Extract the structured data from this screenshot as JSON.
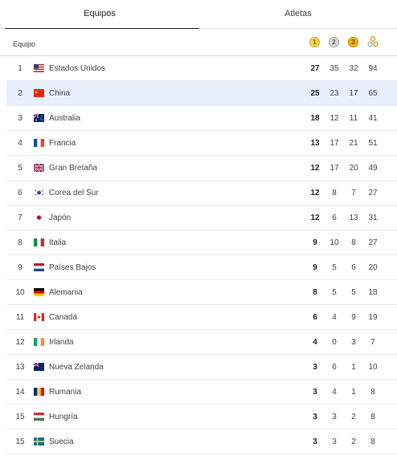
{
  "tabs": [
    {
      "label": "Equipos",
      "active": true
    },
    {
      "label": "Atletas",
      "active": false
    }
  ],
  "header": {
    "team_label": "Equipo",
    "gold": "1",
    "silver": "2",
    "bronze": "3"
  },
  "colors": {
    "highlight_row": "#e8f0fe",
    "gold": "#f7d44c",
    "silver": "#d9d9d9",
    "bronze": "#f4b400"
  },
  "rows": [
    {
      "rank": "1",
      "team": "Estados Unidos",
      "flag": "usa",
      "gold": "27",
      "silver": "35",
      "bronze": "32",
      "total": "94"
    },
    {
      "rank": "2",
      "team": "China",
      "flag": "china",
      "gold": "25",
      "silver": "23",
      "bronze": "17",
      "total": "65",
      "highlighted": true
    },
    {
      "rank": "3",
      "team": "Australia",
      "flag": "australia",
      "gold": "18",
      "silver": "12",
      "bronze": "11",
      "total": "41"
    },
    {
      "rank": "4",
      "team": "Francia",
      "flag": "france",
      "gold": "13",
      "silver": "17",
      "bronze": "21",
      "total": "51"
    },
    {
      "rank": "5",
      "team": "Gran Bretaña",
      "flag": "uk",
      "gold": "12",
      "silver": "17",
      "bronze": "20",
      "total": "49"
    },
    {
      "rank": "6",
      "team": "Corea del Sur",
      "flag": "korea",
      "gold": "12",
      "silver": "8",
      "bronze": "7",
      "total": "27"
    },
    {
      "rank": "7",
      "team": "Japón",
      "flag": "japan",
      "gold": "12",
      "silver": "6",
      "bronze": "13",
      "total": "31"
    },
    {
      "rank": "8",
      "team": "Italia",
      "flag": "italy",
      "gold": "9",
      "silver": "10",
      "bronze": "8",
      "total": "27"
    },
    {
      "rank": "9",
      "team": "Países Bajos",
      "flag": "netherlands",
      "gold": "9",
      "silver": "5",
      "bronze": "6",
      "total": "20"
    },
    {
      "rank": "10",
      "team": "Alemania",
      "flag": "germany",
      "gold": "8",
      "silver": "5",
      "bronze": "5",
      "total": "18"
    },
    {
      "rank": "11",
      "team": "Canadá",
      "flag": "canada",
      "gold": "6",
      "silver": "4",
      "bronze": "9",
      "total": "19"
    },
    {
      "rank": "12",
      "team": "Irlanda",
      "flag": "ireland",
      "gold": "4",
      "silver": "0",
      "bronze": "3",
      "total": "7"
    },
    {
      "rank": "13",
      "team": "Nueva Zelanda",
      "flag": "newzealand",
      "gold": "3",
      "silver": "6",
      "bronze": "1",
      "total": "10"
    },
    {
      "rank": "14",
      "team": "Rumania",
      "flag": "romania",
      "gold": "3",
      "silver": "4",
      "bronze": "1",
      "total": "8"
    },
    {
      "rank": "15",
      "team": "Hungría",
      "flag": "hungary",
      "gold": "3",
      "silver": "3",
      "bronze": "2",
      "total": "8"
    },
    {
      "rank": "15",
      "team": "Suecia",
      "flag": "sweden",
      "gold": "3",
      "silver": "3",
      "bronze": "2",
      "total": "8"
    }
  ]
}
